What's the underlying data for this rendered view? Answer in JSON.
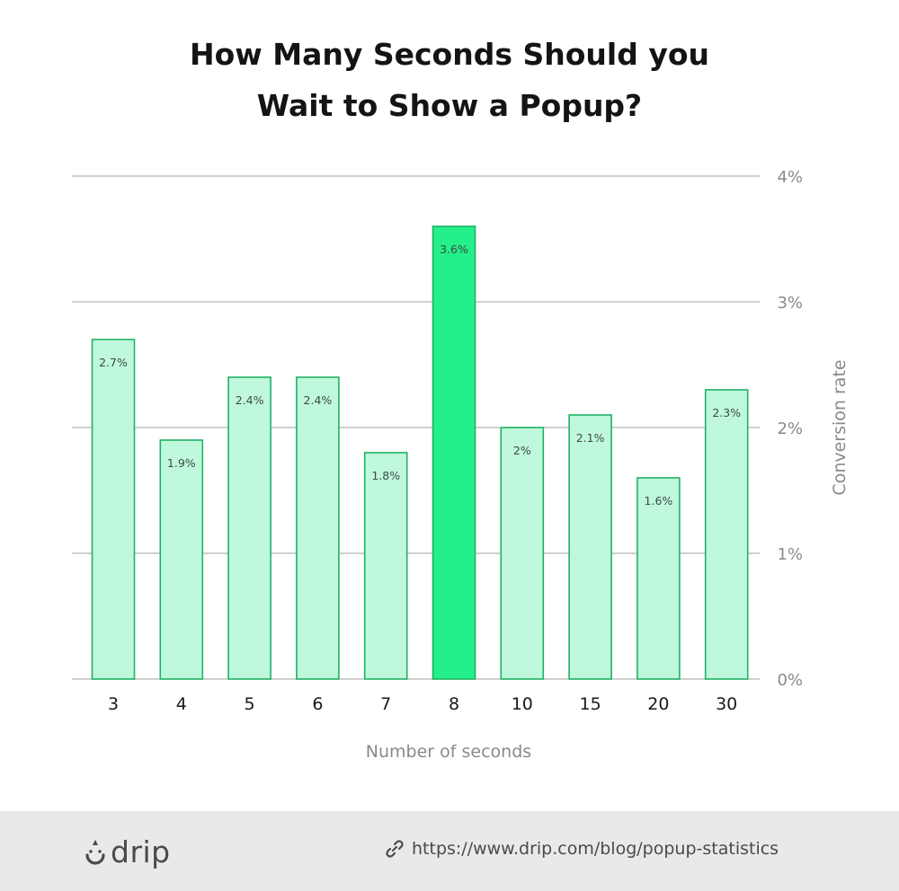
{
  "chart_data": {
    "type": "bar",
    "title_lines": [
      "How Many Seconds Should you",
      "Wait to Show a Popup?"
    ],
    "xlabel": "Number of seconds",
    "ylabel": "Conversion rate",
    "categories": [
      "3",
      "4",
      "5",
      "6",
      "7",
      "8",
      "10",
      "15",
      "20",
      "30"
    ],
    "values": [
      2.7,
      1.9,
      2.4,
      2.4,
      1.8,
      3.6,
      2.0,
      2.1,
      1.6,
      2.3
    ],
    "data_labels": [
      "2.7%",
      "1.9%",
      "2.4%",
      "2.4%",
      "1.8%",
      "3.6%",
      "2%",
      "2.1%",
      "1.6%",
      "2.3%"
    ],
    "highlight_index": 5,
    "ylim": [
      0,
      4
    ],
    "y_ticks": [
      0,
      1,
      2,
      3,
      4
    ],
    "y_tick_labels": [
      "0%",
      "1%",
      "2%",
      "3%",
      "4%"
    ],
    "y_axis_side": "right",
    "grid": true,
    "colors": {
      "bar_fill": "#bff8dc",
      "bar_stroke": "#1fb264",
      "highlight_fill": "#23f08a",
      "grid": "#b3b3b3",
      "axis_text": "#8a8a8a",
      "title": "#141414"
    }
  },
  "footer": {
    "brand": "drip",
    "brand_icon": "drip-logo-icon",
    "link_icon": "link-icon",
    "source_url": "https://www.drip.com/blog/popup-statistics"
  }
}
